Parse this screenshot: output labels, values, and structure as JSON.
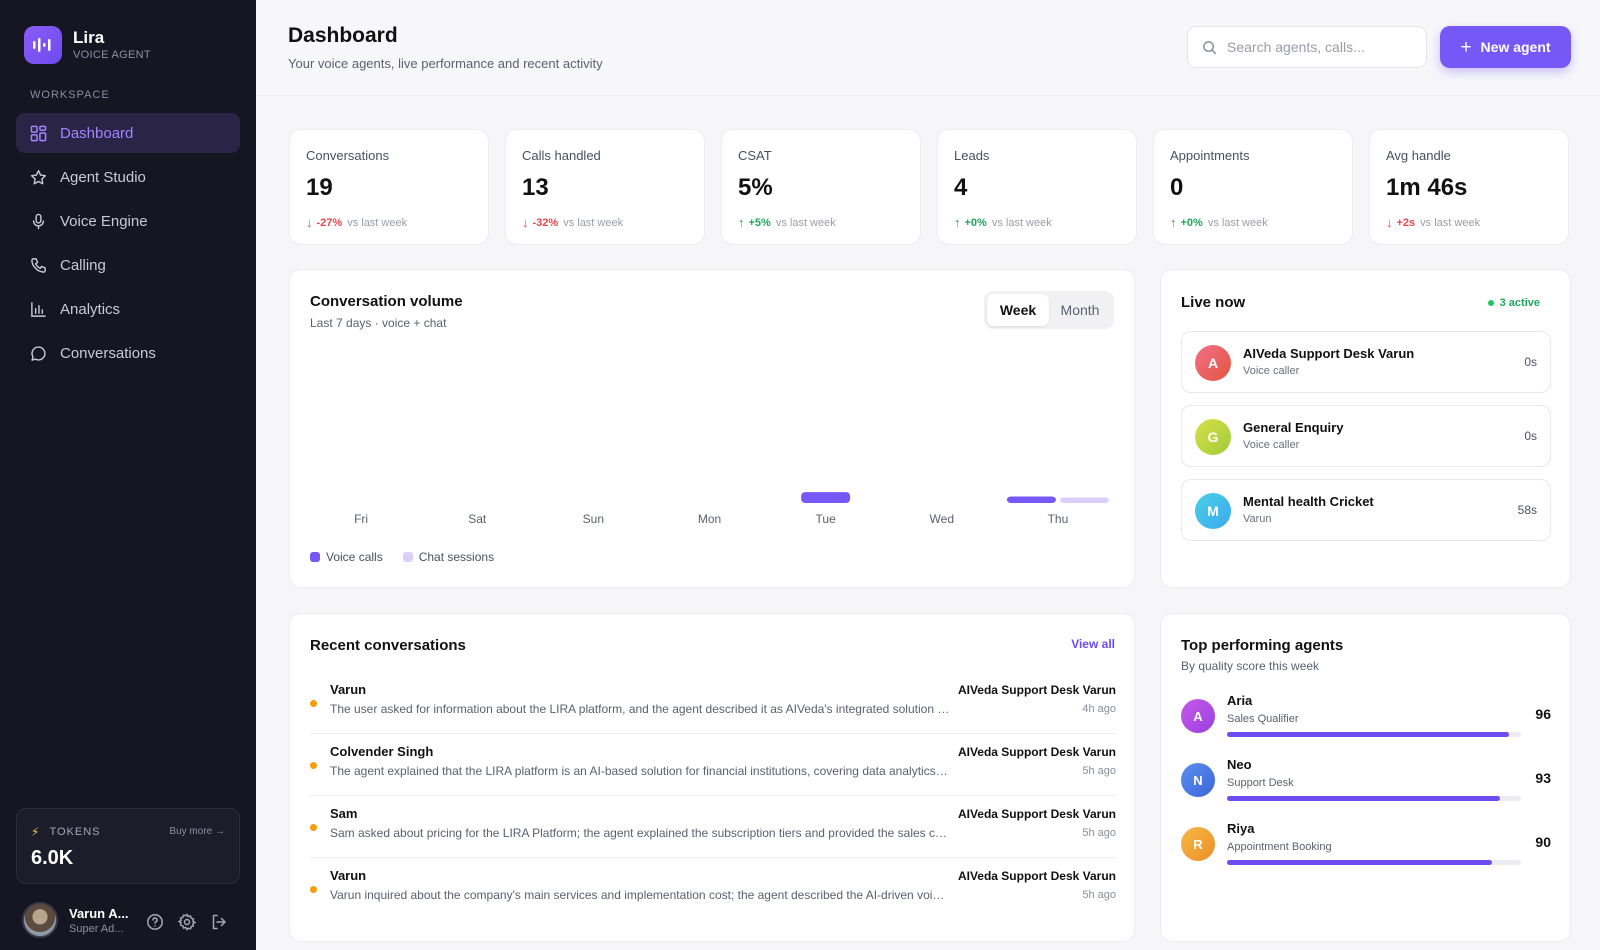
{
  "brand": {
    "name": "Lira",
    "subtitle": "VOICE AGENT"
  },
  "sidebar": {
    "section_label": "WORKSPACE",
    "items": [
      {
        "label": "Dashboard",
        "icon": "grid-icon",
        "active": true
      },
      {
        "label": "Agent Studio",
        "icon": "star-icon"
      },
      {
        "label": "Voice Engine",
        "icon": "microphone-icon"
      },
      {
        "label": "Calling",
        "icon": "phone-icon"
      },
      {
        "label": "Analytics",
        "icon": "bar-chart-icon"
      },
      {
        "label": "Conversations",
        "icon": "chat-bubble-icon"
      }
    ],
    "tokens": {
      "label": "TOKENS",
      "buy_label": "Buy more →",
      "value": "6.0K"
    },
    "user": {
      "name": "Varun A...",
      "role": "Super Ad..."
    }
  },
  "header": {
    "title": "Dashboard",
    "subtitle": "Your voice agents, live performance and recent activity",
    "search_placeholder": "Search agents, calls...",
    "new_button_label": "New agent"
  },
  "stats": [
    {
      "label": "Conversations",
      "value": "19",
      "delta": "-27%",
      "direction": "down",
      "vs": "vs last week"
    },
    {
      "label": "Calls handled",
      "value": "13",
      "delta": "-32%",
      "direction": "down",
      "vs": "vs last week"
    },
    {
      "label": "CSAT",
      "value": "5%",
      "delta": "+5%",
      "direction": "up",
      "vs": "vs last week"
    },
    {
      "label": "Leads",
      "value": "4",
      "delta": "+0%",
      "direction": "up",
      "vs": "vs last week"
    },
    {
      "label": "Appointments",
      "value": "0",
      "delta": "+0%",
      "direction": "up",
      "vs": "vs last week"
    },
    {
      "label": "Avg handle",
      "value": "1m 46s",
      "delta": "+2s",
      "direction": "down",
      "vs": "vs last week"
    }
  ],
  "volume": {
    "title": "Conversation volume",
    "subtitle": "Last 7 days · voice + chat",
    "toggle": {
      "week": "Week",
      "month": "Month",
      "selected": "Week"
    }
  },
  "chart_data": {
    "type": "bar",
    "categories": [
      "Fri",
      "Sat",
      "Sun",
      "Mon",
      "Tue",
      "Wed",
      "Thu"
    ],
    "series": [
      {
        "name": "Voice calls",
        "values": [
          0,
          0,
          0,
          0,
          1,
          0,
          0.6
        ],
        "color": "#7658f7"
      },
      {
        "name": "Chat sessions",
        "values": [
          0,
          0,
          0,
          0,
          0,
          0,
          0.5
        ],
        "color": "#d8d0fb"
      }
    ],
    "ylim": [
      0,
      14
    ],
    "legend": "bottom-left",
    "grid": false
  },
  "live": {
    "title": "Live now",
    "badge": "3 active",
    "items": [
      {
        "initial": "A",
        "name": "AIVeda Support Desk Varun",
        "sub": "Voice caller",
        "time": "0s",
        "color": "#ef5f73"
      },
      {
        "initial": "G",
        "name": "General Enquiry",
        "sub": "Voice caller",
        "time": "0s",
        "color": "#b8d43a"
      },
      {
        "initial": "M",
        "name": "Mental health Cricket",
        "sub": "Varun",
        "time": "58s",
        "color": "#3fc3e8"
      }
    ]
  },
  "recent": {
    "title": "Recent conversations",
    "view_all": "View all",
    "rows": [
      {
        "name": "Varun",
        "text": "The user asked for information about the LIRA platform, and the agent described it as AIVeda's integrated solution for enterprise voice automation and customer engagement.",
        "agent": "AIVeda Support Desk Varun",
        "time": "4h ago"
      },
      {
        "name": "Colvender Singh",
        "text": "The agent explained that the LIRA platform is an AI-based solution for financial institutions, covering data analytics and onboarding workflows.",
        "agent": "AIVeda Support Desk Varun",
        "time": "5h ago"
      },
      {
        "name": "Sam",
        "text": "Sam asked about pricing for the LIRA Platform; the agent explained the subscription tiers and provided the sales contact details.",
        "agent": "AIVeda Support Desk Varun",
        "time": "5h ago"
      },
      {
        "name": "Varun",
        "text": "Varun inquired about the company's main services and implementation cost; the agent described the AI-driven voice and chat offerings.",
        "agent": "AIVeda Support Desk Varun",
        "time": "5h ago"
      }
    ]
  },
  "top_agents": {
    "title": "Top performing agents",
    "subtitle": "By quality score this week",
    "agents": [
      {
        "initial": "A",
        "name": "Aria",
        "role": "Sales Qualifier",
        "score": 96,
        "color": "#b44be6"
      },
      {
        "initial": "N",
        "name": "Neo",
        "role": "Support Desk",
        "score": 93,
        "color": "#4a7fe6"
      },
      {
        "initial": "R",
        "name": "Riya",
        "role": "Appointment Booking",
        "score": 90,
        "color": "#f0a830"
      }
    ]
  }
}
